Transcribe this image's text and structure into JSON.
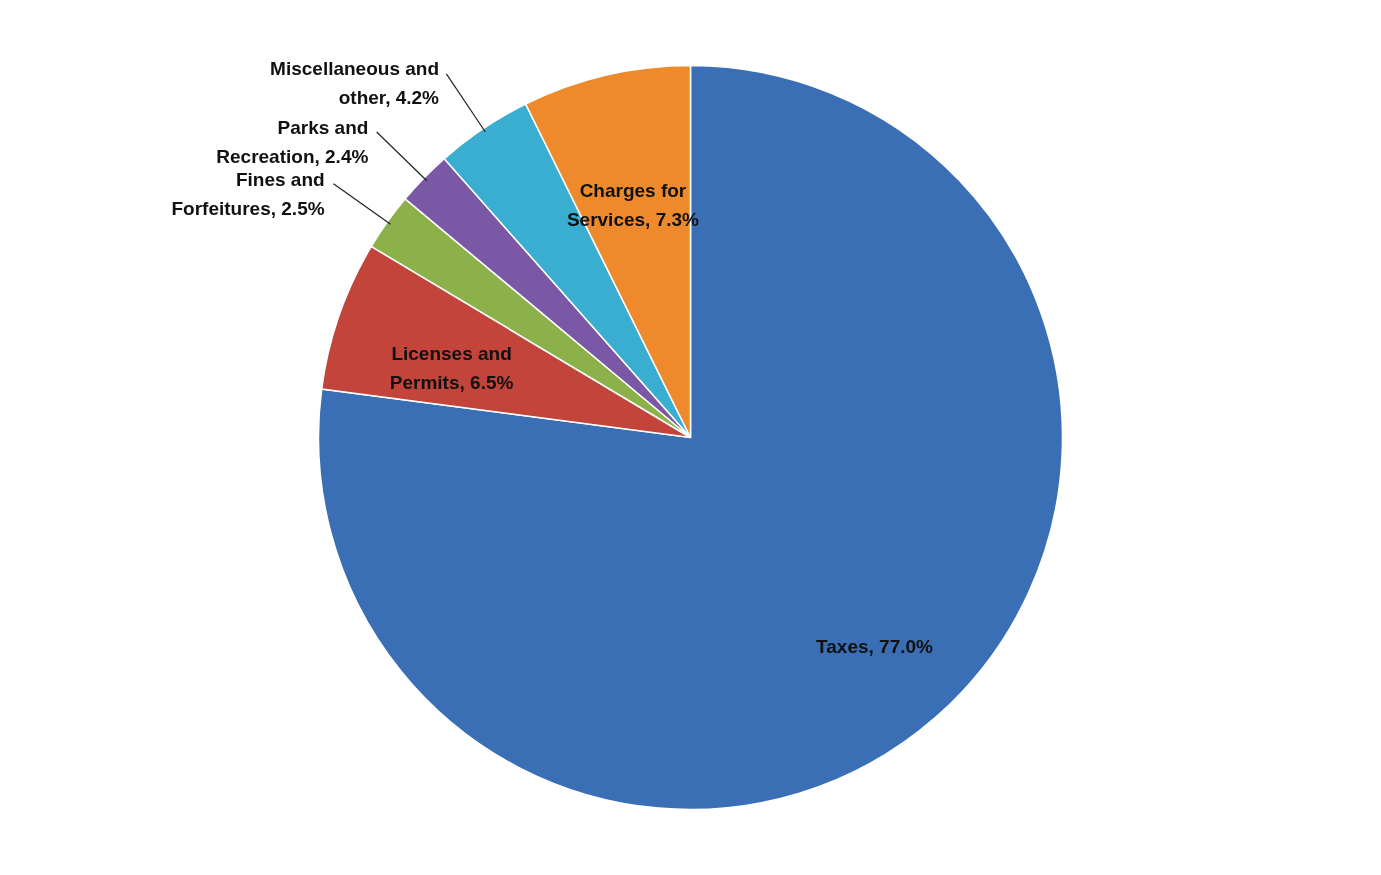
{
  "chart_data": {
    "type": "pie",
    "categories": [
      "Taxes",
      "Licenses and Permits",
      "Fines and Forfeitures",
      "Parks and Recreation",
      "Miscellaneous  and other",
      "Charges for Services"
    ],
    "values": [
      77.0,
      6.5,
      2.5,
      2.4,
      4.2,
      7.3
    ],
    "colors": [
      "#3a6fb5",
      "#c2443b",
      "#8cb04a",
      "#7a58a5",
      "#3aaed0",
      "#ef8a2c"
    ],
    "value_labels": [
      "77.0%",
      "6.5%",
      "2.5%",
      "2.4%",
      "4.2%",
      "7.3%"
    ]
  }
}
